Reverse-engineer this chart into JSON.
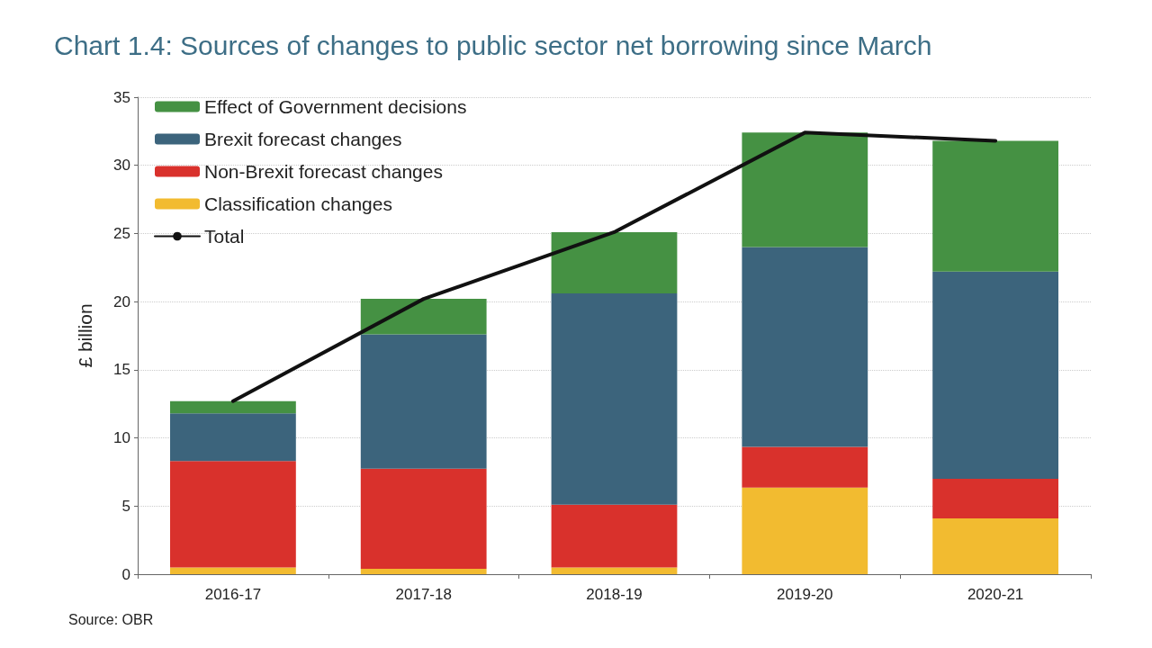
{
  "chart_data": {
    "type": "bar",
    "title": "Chart 1.4: Sources of changes to public sector net borrowing since March",
    "ylabel": "£ billion",
    "annotations": [
      "Source: OBR"
    ],
    "categories": [
      "2016-17",
      "2017-18",
      "2018-19",
      "2019-20",
      "2020-21"
    ],
    "stacked": true,
    "series": [
      {
        "name": "Classification changes",
        "color": "#f2bb30",
        "values": [
          0.5,
          0.4,
          0.5,
          6.35,
          4.1
        ]
      },
      {
        "name": "Non-Brexit forecast changes",
        "color": "#d9312c",
        "values": [
          7.8,
          7.35,
          4.6,
          3.0,
          2.9
        ]
      },
      {
        "name": "Brexit forecast changes",
        "color": "#3c647c",
        "values": [
          3.5,
          9.85,
          15.5,
          14.65,
          15.2
        ]
      },
      {
        "name": "Effect of Government decisions",
        "color": "#459143",
        "values": [
          0.9,
          2.6,
          4.5,
          8.4,
          9.6
        ]
      },
      {
        "name": "Total",
        "type": "line",
        "color": "#111111",
        "values": [
          12.7,
          20.2,
          25.1,
          32.4,
          31.8
        ]
      }
    ],
    "ylim": [
      0,
      35
    ],
    "yticks": [
      0,
      5,
      10,
      15,
      20,
      25,
      30,
      35
    ],
    "grid": "y",
    "legend": "top left",
    "marker": "none",
    "line_style": "solid"
  }
}
